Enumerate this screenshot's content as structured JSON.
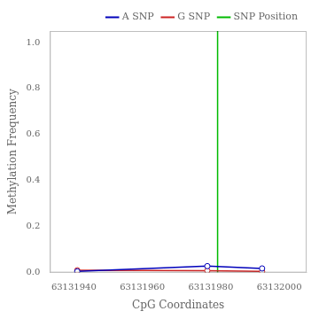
{
  "chart_data": {
    "type": "line",
    "x_label": "CpG Coordinates",
    "y_label": "Methylation Frequency",
    "series": [
      {
        "name": "A SNP",
        "color": "#0000bb",
        "marker": "circle",
        "x": [
          63131941,
          63131979,
          63131995
        ],
        "values": [
          0.005,
          0.028,
          0.018
        ]
      },
      {
        "name": "G SNP",
        "color": "#cc2222",
        "marker": "circle",
        "x": [
          63131941,
          63131979,
          63131995
        ],
        "values": [
          0.01,
          0.008,
          0.005
        ]
      },
      {
        "name": "SNP Position",
        "type": "vline",
        "color": "#00bb00",
        "x": 63131982
      }
    ],
    "xlim": [
      63131933,
      63132008
    ],
    "xticks": [
      63131940,
      63131960,
      63131980,
      63132000
    ],
    "ylim": [
      0.0,
      1.05
    ],
    "yticks": [
      {
        "value": 0,
        "label": "0.0"
      },
      0.2,
      0.4,
      0.6,
      0.8,
      {
        "value": 1,
        "label": "1.0"
      }
    ],
    "grid": false,
    "legend": "upper right"
  }
}
